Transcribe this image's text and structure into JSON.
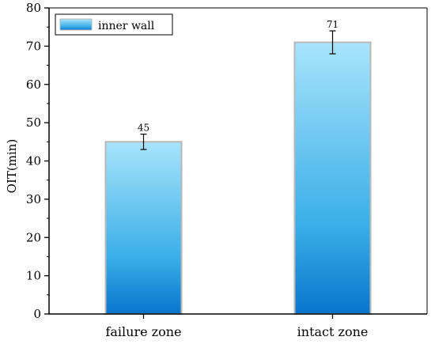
{
  "chart_data": {
    "type": "bar",
    "title": "",
    "xlabel": "",
    "ylabel": "OIT(min)",
    "ylim": [
      0,
      80
    ],
    "yticks": [
      0,
      10,
      20,
      30,
      40,
      50,
      60,
      70,
      80
    ],
    "categories": [
      "failure zone",
      "intact zone"
    ],
    "series": [
      {
        "name": "inner wall",
        "values": [
          45,
          71
        ],
        "error": [
          2,
          3
        ],
        "labels": [
          "45",
          "71"
        ]
      }
    ],
    "legend_position": "top-left",
    "grid": false,
    "colors": {
      "bar_top": "#a9e4fb",
      "bar_mid": "#39aee8",
      "bar_bottom": "#0a74cc",
      "bar_border": "#b8b8b8",
      "axis": "#000000"
    }
  }
}
